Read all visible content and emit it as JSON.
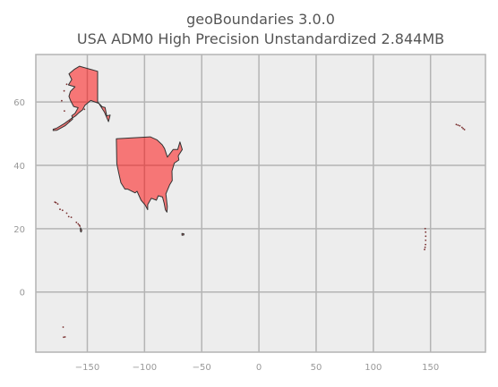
{
  "title_line_1": "geoBoundaries 3.0.0",
  "title_line_2": "USA ADM0 High Precision Unstandardized 2.844MB",
  "chart_data": {
    "type": "map",
    "title": "geoBoundaries 3.0.0\nUSA ADM0 High Precision Unstandardized 2.844MB",
    "xlim": [
      -195,
      198
    ],
    "ylim": [
      -19,
      75
    ],
    "xticks": [
      -150,
      -100,
      -50,
      0,
      50,
      100,
      150
    ],
    "xtick_labels": [
      "−150",
      "−100",
      "−50",
      "0",
      "50",
      "100",
      "150"
    ],
    "yticks": [
      0,
      20,
      40,
      60
    ],
    "ytick_labels": [
      "0",
      "20",
      "40",
      "60"
    ],
    "grid": true,
    "background_color": "#ededed",
    "grid_color": "#b4b4b4",
    "fill_color": "#ff0000",
    "fill_alpha": 0.5,
    "edge_color": "#333333",
    "regions": [
      {
        "name": "contiguous-us",
        "polygon": [
          [
            -124.6,
            48.4
          ],
          [
            -95,
            49
          ],
          [
            -89,
            48
          ],
          [
            -84.5,
            46.5
          ],
          [
            -82.5,
            45.3
          ],
          [
            -80,
            42.6
          ],
          [
            -75,
            45
          ],
          [
            -71,
            45
          ],
          [
            -69,
            47.4
          ],
          [
            -67,
            45
          ],
          [
            -70.5,
            43
          ],
          [
            -70,
            41.7
          ],
          [
            -74,
            40.7
          ],
          [
            -76,
            38.2
          ],
          [
            -75.8,
            35.2
          ],
          [
            -78,
            33.9
          ],
          [
            -81.3,
            31
          ],
          [
            -80.1,
            27
          ],
          [
            -80.4,
            25.2
          ],
          [
            -81.7,
            25.9
          ],
          [
            -82.8,
            28
          ],
          [
            -84.3,
            30
          ],
          [
            -88,
            30.4
          ],
          [
            -89.6,
            29
          ],
          [
            -94,
            29.6
          ],
          [
            -97.2,
            27.6
          ],
          [
            -97.2,
            26
          ],
          [
            -99.5,
            27.5
          ],
          [
            -103,
            29
          ],
          [
            -106.5,
            31.8
          ],
          [
            -108.2,
            31.3
          ],
          [
            -114.8,
            32.5
          ],
          [
            -117.1,
            32.5
          ],
          [
            -120.6,
            34.5
          ],
          [
            -122.5,
            37.5
          ],
          [
            -124.2,
            40.5
          ],
          [
            -124.6,
            48.4
          ]
        ]
      },
      {
        "name": "alaska",
        "polygon": [
          [
            -141,
            69.7
          ],
          [
            -141,
            60
          ],
          [
            -137,
            58.5
          ],
          [
            -134.5,
            58.3
          ],
          [
            -133,
            55.6
          ],
          [
            -130,
            55.9
          ],
          [
            -131.5,
            53.8
          ],
          [
            -135,
            56.8
          ],
          [
            -140,
            59.6
          ],
          [
            -147,
            60.5
          ],
          [
            -152,
            59
          ],
          [
            -154.2,
            57.5
          ],
          [
            -157.4,
            56.6
          ],
          [
            -160,
            55.7
          ],
          [
            -163,
            55
          ],
          [
            -163.5,
            55.7
          ],
          [
            -160.8,
            56.4
          ],
          [
            -158,
            58.2
          ],
          [
            -162,
            58.6
          ],
          [
            -164.7,
            60.5
          ],
          [
            -166,
            61.8
          ],
          [
            -164.8,
            63.3
          ],
          [
            -160.8,
            64.8
          ],
          [
            -166.5,
            65.4
          ],
          [
            -163.6,
            67.1
          ],
          [
            -166,
            68.9
          ],
          [
            -161.5,
            70.3
          ],
          [
            -156.8,
            71.3
          ],
          [
            -152,
            70.8
          ],
          [
            -146,
            70.2
          ],
          [
            -141,
            69.7
          ]
        ]
      },
      {
        "name": "aleutian-islands",
        "polygon": [
          [
            -163.2,
            55.0
          ],
          [
            -170,
            53.2
          ],
          [
            -177,
            51.7
          ],
          [
            -179.8,
            51.4
          ],
          [
            -179.9,
            51.0
          ],
          [
            -176.5,
            51.1
          ],
          [
            -169.5,
            52.5
          ],
          [
            -162.8,
            54.6
          ],
          [
            -163.2,
            55.0
          ]
        ]
      },
      {
        "name": "hawaii",
        "polygon": [
          [
            -155.9,
            20.3
          ],
          [
            -154.8,
            19.5
          ],
          [
            -155.3,
            18.95
          ],
          [
            -156.0,
            19.15
          ],
          [
            -156.1,
            19.8
          ],
          [
            -155.9,
            20.3
          ]
        ]
      },
      {
        "name": "puerto-rico",
        "polygon": [
          [
            -67.3,
            18.5
          ],
          [
            -65.6,
            18.4
          ],
          [
            -65.6,
            18.0
          ],
          [
            -67.2,
            17.9
          ],
          [
            -67.3,
            18.5
          ]
        ]
      }
    ],
    "point_features": [
      {
        "name": "hawaii-small-islands",
        "points": [
          [
            -156.5,
            20.8
          ],
          [
            -157.0,
            21.1
          ],
          [
            -158.0,
            21.5
          ],
          [
            -159.5,
            22.0
          ]
        ]
      },
      {
        "name": "northwestern-hawaiian-islands",
        "points": [
          [
            -164,
            23.6
          ],
          [
            -166.3,
            23.8
          ],
          [
            -168,
            24.9
          ],
          [
            -171.7,
            25.8
          ],
          [
            -173.9,
            26.1
          ],
          [
            -175.8,
            27.8
          ],
          [
            -177.4,
            28.2
          ],
          [
            -178.3,
            28.4
          ]
        ]
      },
      {
        "name": "alaska-islands",
        "points": [
          [
            -170,
            57.2
          ],
          [
            -170.3,
            63.5
          ],
          [
            -172.4,
            60.4
          ],
          [
            -168,
            65.6
          ],
          [
            -152.5,
            57.7
          ],
          [
            -165.7,
            54.1
          ]
        ]
      },
      {
        "name": "near-aleutians",
        "points": [
          [
            172.5,
            52.9
          ],
          [
            174,
            52.7
          ],
          [
            175.5,
            52.5
          ],
          [
            177.5,
            52.0
          ],
          [
            178.5,
            51.6
          ],
          [
            179.7,
            51.3
          ]
        ]
      },
      {
        "name": "guam-northern-marianas",
        "points": [
          [
            144.8,
            13.4
          ],
          [
            145.2,
            14.1
          ],
          [
            145.6,
            15.0
          ],
          [
            145.7,
            16.3
          ],
          [
            145.8,
            17.6
          ],
          [
            145.7,
            18.9
          ],
          [
            145.3,
            20.0
          ]
        ]
      },
      {
        "name": "american-samoa",
        "points": [
          [
            -170.7,
            -14.3
          ],
          [
            -169.5,
            -14.2
          ],
          [
            -171.1,
            -11.1
          ]
        ]
      }
    ]
  }
}
